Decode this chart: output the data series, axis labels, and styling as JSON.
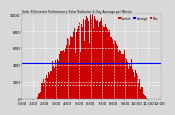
{
  "title": "Solar PV/Inverter Performance Solar Radiation & Day Average per Minute",
  "title_color": "#000000",
  "legend_labels": [
    "Current",
    "Average",
    "Max"
  ],
  "legend_colors": [
    "#cc0000",
    "#0000ff",
    "#ff0000"
  ],
  "bg_color": "#d8d8d8",
  "plot_bg_color": "#d8d8d8",
  "bar_color": "#cc0000",
  "bar_edge_color": "#cc0000",
  "line1_color": "#0000ff",
  "line1_y": 0.42,
  "line2_color": "#ffffff",
  "line2_y": 0.17,
  "ylim": [
    0,
    1000
  ],
  "xlim": [
    0,
    144
  ],
  "yticks": [
    0,
    200,
    400,
    600,
    800,
    1000
  ],
  "grid_color": "#ffffff",
  "n_bars": 144,
  "peak_x": 72,
  "peak_value": 950,
  "noise_scale": 40,
  "time_labels": [
    "0:00",
    "1:00",
    "2:00",
    "3:00",
    "4:00",
    "5:00",
    "6:00",
    "7:00",
    "8:00",
    "9:00",
    "10:00",
    "11:00",
    "12:00"
  ],
  "xtick_positions": [
    0,
    11,
    23,
    35,
    47,
    59,
    71,
    83,
    95,
    107,
    119,
    131,
    143
  ]
}
